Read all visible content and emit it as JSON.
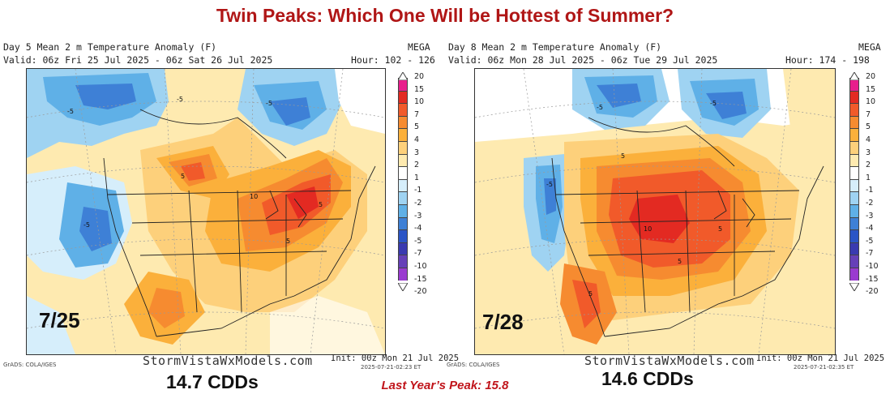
{
  "title": "Twin Peaks: Which One Will be Hottest of Summer?",
  "last_year_peak": "Last Year’s Peak: 15.8",
  "colors": {
    "title": "#b01616",
    "anomaly_scale": [
      "#e81e8c",
      "#e32a22",
      "#f15a2a",
      "#f68b30",
      "#fbb03b",
      "#fdd07b",
      "#feeab0",
      "#ffffff",
      "#d6eefb",
      "#9fd3f2",
      "#5fb0e7",
      "#3e80d6",
      "#2b55c6",
      "#3a3ab0",
      "#6640b8",
      "#9a3bd0"
    ]
  },
  "colorbar_labels": [
    "20",
    "15",
    "10",
    "7",
    "5",
    "4",
    "3",
    "2",
    "1",
    "-1",
    "-2",
    "-3",
    "-4",
    "-5",
    "-7",
    "-10",
    "-15",
    "-20"
  ],
  "panels": [
    {
      "id": "left",
      "line1": "Day 5 Mean 2 m Temperature Anomaly (F)",
      "line2": "Valid: 06z Fri 25 Jul 2025 - 06z Sat 26 Jul 2025",
      "model": "MEGA",
      "hour": "Hour: 102 - 126",
      "date_label": "7/25",
      "site": "StormVistaWxModels.com",
      "init": "Init: 00z Mon 21 Jul 2025",
      "stamp": "2025-07-21-02:23 ET",
      "grads": "GrADS: COLA/IGES",
      "cdd": "14.7 CDDs",
      "contour_labels": [
        "-5",
        "-5",
        "-5",
        "5",
        "5",
        "5",
        "10",
        "-5"
      ]
    },
    {
      "id": "right",
      "line1": "Day 8 Mean 2 m Temperature Anomaly (F)",
      "line2": "Valid: 06z Mon 28 Jul 2025 - 06z Tue 29 Jul 2025",
      "model": "MEGA",
      "hour": "Hour: 174 - 198",
      "date_label": "7/28",
      "site": "StormVistaWxModels.com",
      "init": "Init: 00z Mon 21 Jul 2025",
      "stamp": "2025-07-21-02:35 ET",
      "grads": "GrADS: COLA/IGES",
      "cdd": "14.6 CDDs",
      "contour_labels": [
        "-5",
        "-5",
        "5",
        "10",
        "5",
        "5",
        "5",
        "-5"
      ]
    }
  ]
}
